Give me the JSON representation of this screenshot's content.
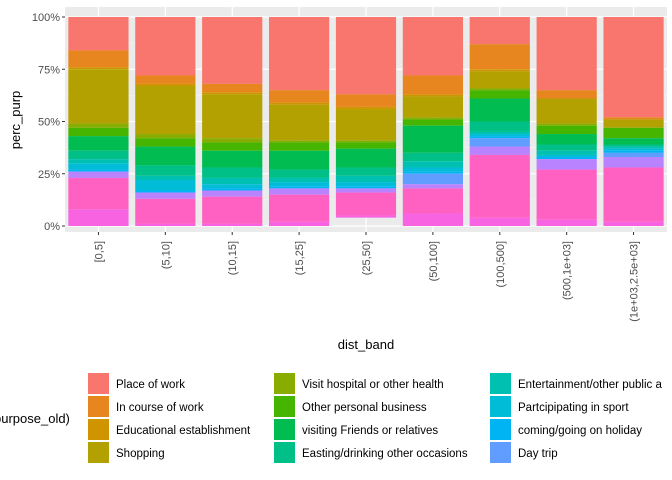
{
  "chart_data": {
    "type": "bar",
    "stacked": true,
    "xlabel": "dist_band",
    "ylabel": "perc_purp",
    "ylim": [
      0,
      1
    ],
    "y_ticks": [
      "0%",
      "25%",
      "50%",
      "75%",
      "100%"
    ],
    "categories": [
      "[0,5]",
      "(5,10]",
      "(10,15]",
      "(15,25]",
      "(25,50]",
      "(50,100]",
      "(100,500]",
      "(500,1e+03]",
      "(1e+03,2.5e+03]"
    ],
    "legend_title": "purpose_old)",
    "grid": true,
    "legend_position": "bottom",
    "series": [
      {
        "name": "Place of work",
        "color": "#F8766D",
        "values": [
          0.16,
          0.28,
          0.32,
          0.35,
          0.37,
          0.28,
          0.13,
          0.35,
          0.48
        ]
      },
      {
        "name": "In course of work",
        "color": "#E7851E",
        "values": [
          0.08,
          0.04,
          0.04,
          0.06,
          0.06,
          0.09,
          0.12,
          0.04,
          0.01
        ]
      },
      {
        "name": "Educational establishment",
        "color": "#D09400",
        "values": [
          0.01,
          0.01,
          0.01,
          0.01,
          0.01,
          0.01,
          0.01,
          0.0,
          0.0
        ]
      },
      {
        "name": "Shopping",
        "color": "#B2A100",
        "values": [
          0.26,
          0.23,
          0.21,
          0.17,
          0.15,
          0.1,
          0.08,
          0.12,
          0.04
        ]
      },
      {
        "name": "Visit hospital or other health",
        "color": "#89AC00",
        "values": [
          0.02,
          0.02,
          0.02,
          0.01,
          0.01,
          0.01,
          0.01,
          0.01,
          0.0
        ]
      },
      {
        "name": "Other personal business",
        "color": "#45B500",
        "values": [
          0.04,
          0.04,
          0.04,
          0.04,
          0.03,
          0.03,
          0.04,
          0.04,
          0.05
        ]
      },
      {
        "name": "visiting Friends or relatives",
        "color": "#00BC51",
        "values": [
          0.07,
          0.09,
          0.08,
          0.09,
          0.09,
          0.13,
          0.11,
          0.05,
          0.03
        ]
      },
      {
        "name": "Easting/drinking other occasions",
        "color": "#00C087",
        "values": [
          0.04,
          0.05,
          0.05,
          0.04,
          0.04,
          0.04,
          0.05,
          0.03,
          0.01
        ]
      },
      {
        "name": "Entertainment/other public a",
        "color": "#00C0B2",
        "values": [
          0.02,
          0.02,
          0.03,
          0.02,
          0.03,
          0.03,
          0.01,
          0.02,
          0.01
        ]
      },
      {
        "name": "Partcipipating in sport",
        "color": "#00BCD6",
        "values": [
          0.03,
          0.05,
          0.02,
          0.02,
          0.02,
          0.02,
          0.01,
          0.01,
          0.01
        ]
      },
      {
        "name": "coming/going on holiday",
        "color": "#00B3F2",
        "values": [
          0.01,
          0.01,
          0.01,
          0.01,
          0.01,
          0.01,
          0.01,
          0.01,
          0.01
        ]
      },
      {
        "name": "Day trip",
        "color": "#619CFF",
        "values": [
          0.0,
          0.0,
          0.0,
          0.0,
          0.0,
          0.05,
          0.04,
          0.0,
          0.02
        ]
      },
      {
        "name": "",
        "color": "#B983FF",
        "values": [
          0.03,
          0.03,
          0.03,
          0.03,
          0.02,
          0.02,
          0.04,
          0.05,
          0.05
        ]
      },
      {
        "name": "",
        "color": "#FF61C3",
        "values": [
          0.15,
          0.12,
          0.13,
          0.13,
          0.11,
          0.12,
          0.3,
          0.24,
          0.26
        ]
      },
      {
        "name": "",
        "color": "#F763E0",
        "values": [
          0.08,
          0.02,
          0.01,
          0.02,
          0.01,
          0.06,
          0.04,
          0.03,
          0.02
        ]
      }
    ]
  }
}
